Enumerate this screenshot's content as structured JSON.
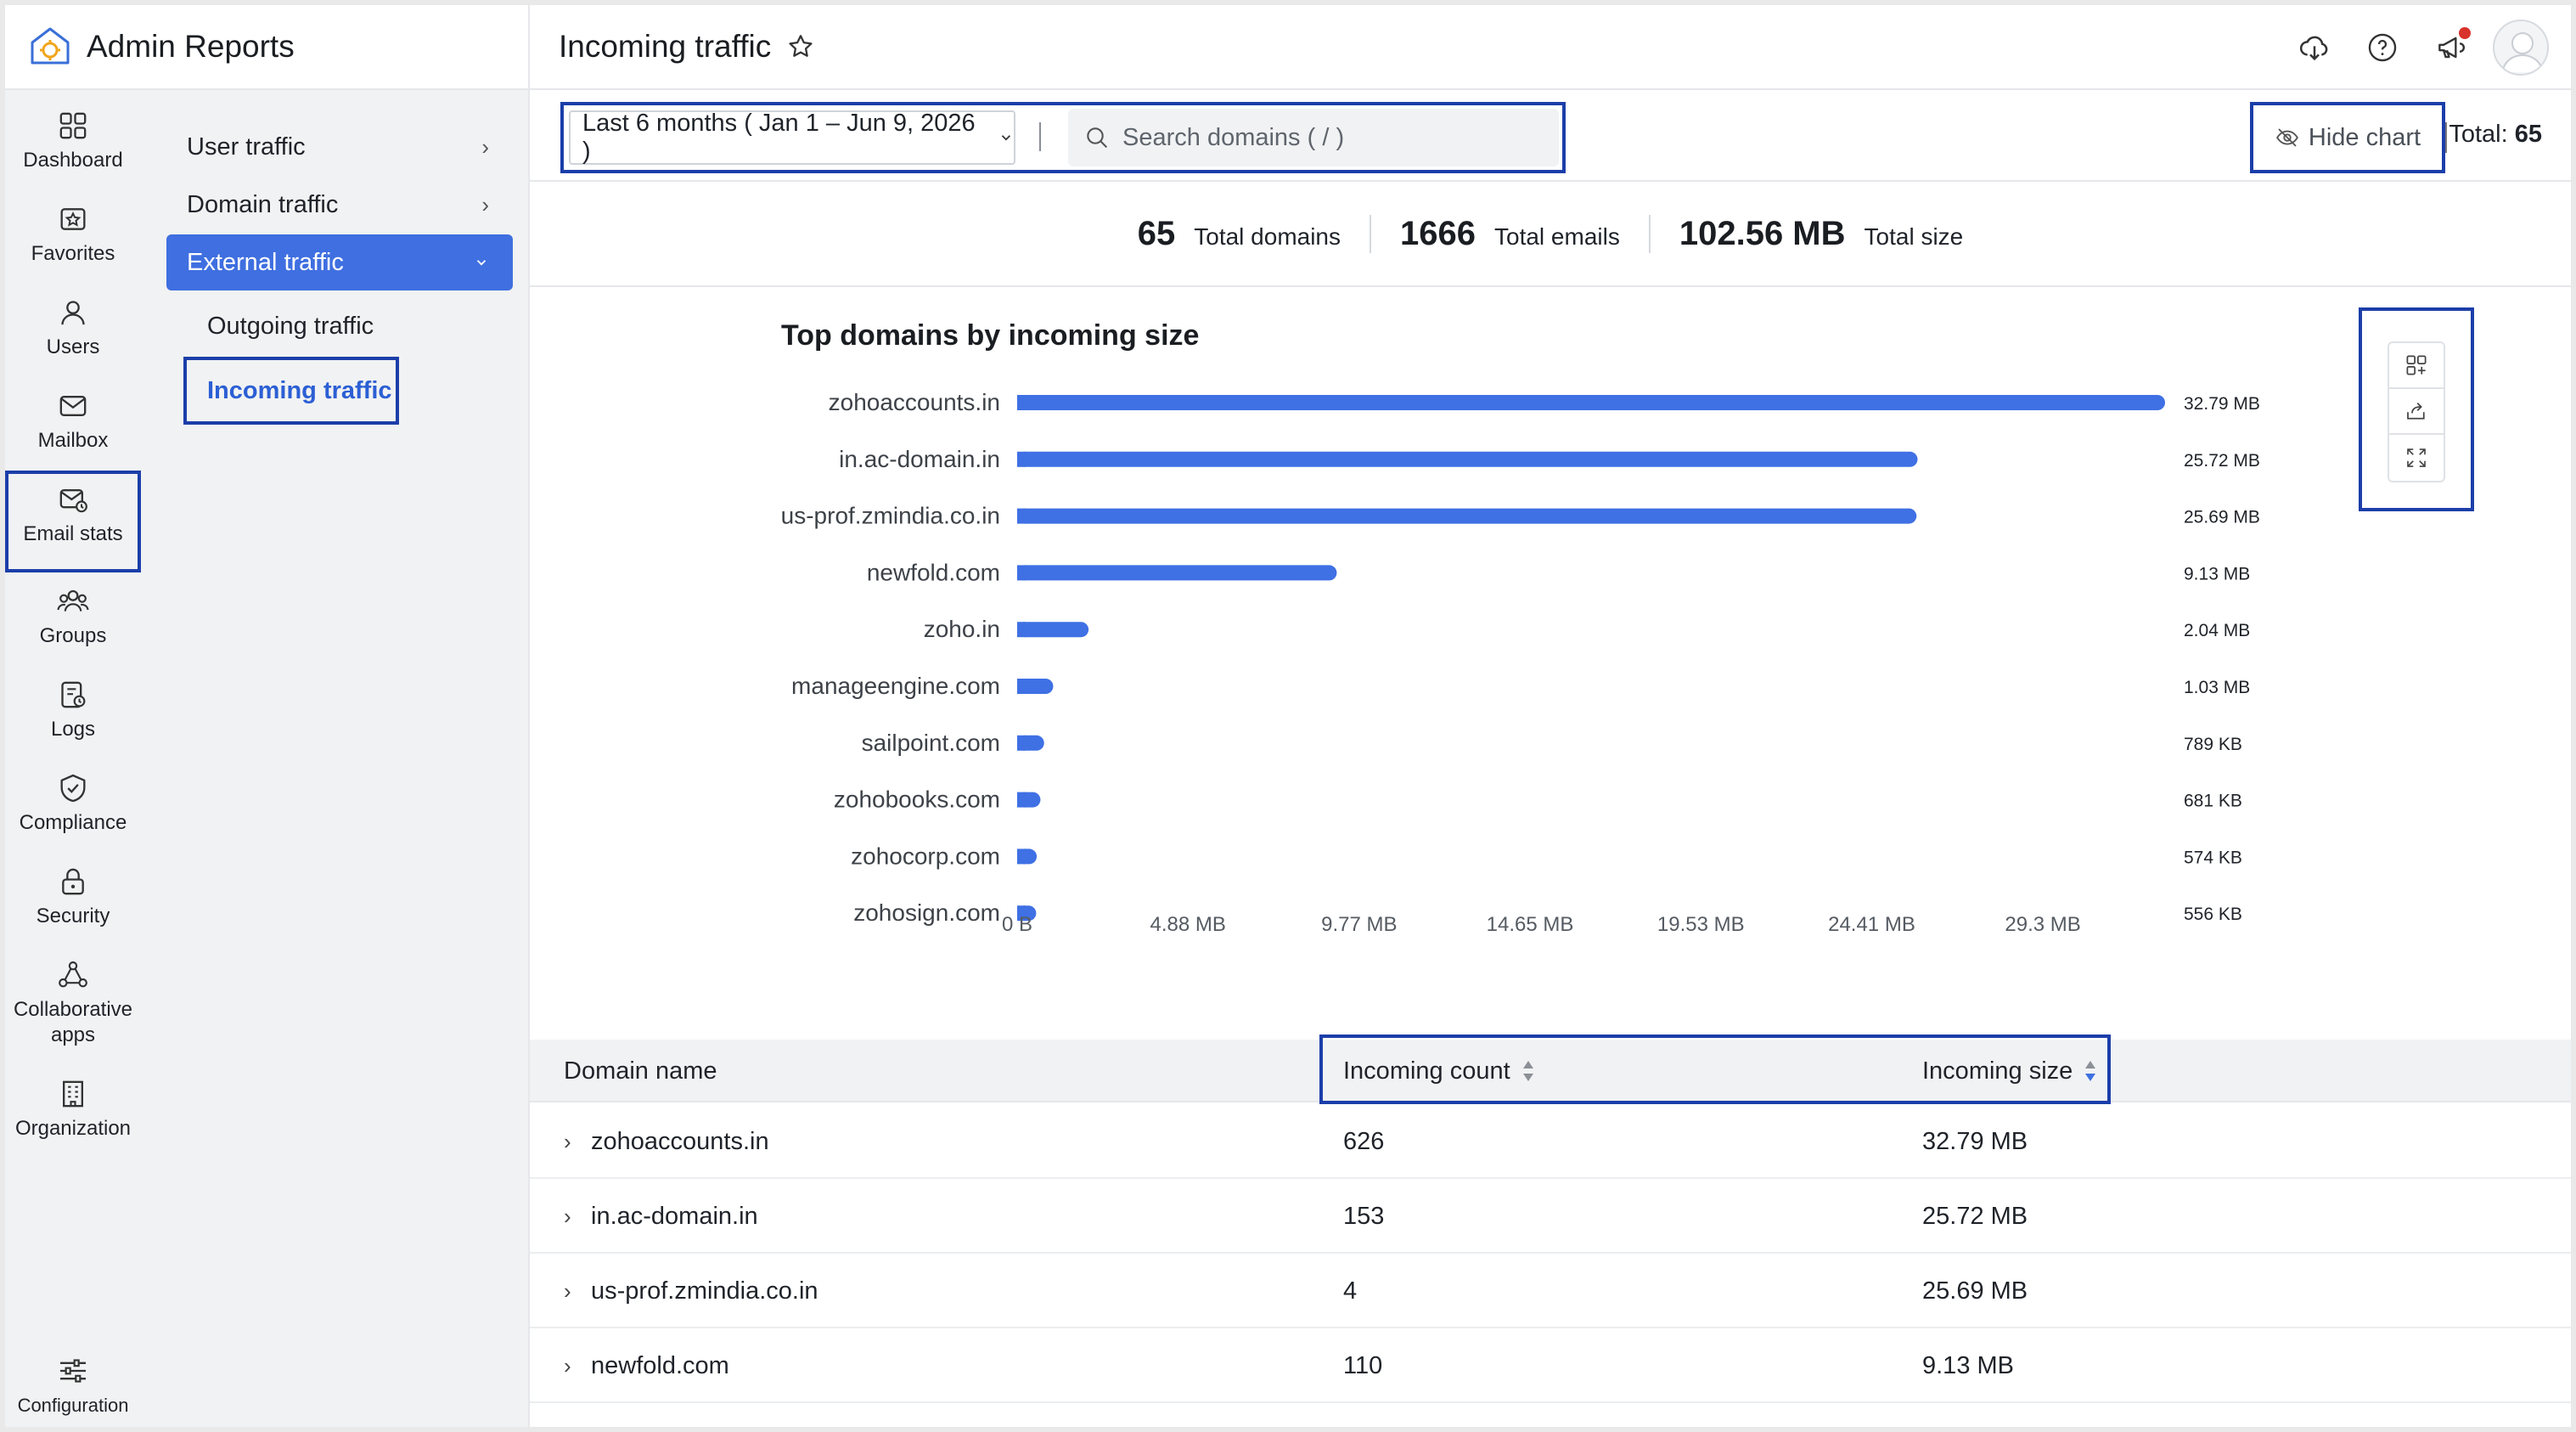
{
  "app": {
    "title": "Admin Reports"
  },
  "header": {
    "page_title": "Incoming traffic"
  },
  "rail": [
    {
      "label": "Dashboard",
      "icon": "dashboard-icon"
    },
    {
      "label": "Favorites",
      "icon": "favorites-icon"
    },
    {
      "label": "Users",
      "icon": "user-icon"
    },
    {
      "label": "Mailbox",
      "icon": "mailbox-icon"
    },
    {
      "label": "Email stats",
      "icon": "email-stats-icon",
      "active": true
    },
    {
      "label": "Groups",
      "icon": "groups-icon"
    },
    {
      "label": "Logs",
      "icon": "logs-icon"
    },
    {
      "label": "Compliance",
      "icon": "compliance-icon"
    },
    {
      "label": "Security",
      "icon": "lock-icon"
    },
    {
      "label": "Collaborative apps",
      "label_line1": "Collaborative",
      "label_line2": "apps",
      "icon": "collaborative-apps-icon"
    },
    {
      "label": "Organization",
      "icon": "organization-icon"
    }
  ],
  "rail_bottom": {
    "label": "Configuration",
    "icon": "settings-sliders-icon"
  },
  "subnav": {
    "items": [
      {
        "label": "User traffic"
      },
      {
        "label": "Domain traffic"
      },
      {
        "label": "External traffic",
        "selected": true
      }
    ],
    "children": [
      {
        "label": "Outgoing traffic"
      },
      {
        "label": "Incoming traffic",
        "active": true
      }
    ]
  },
  "toolbar": {
    "date_range": "Last 6 months ( Jan 1 – Jun 9, 2026 )",
    "search_placeholder": "Search domains ( / )",
    "hide_chart_label": "Hide chart",
    "total_label": "Total:",
    "total_value": "65"
  },
  "stats": [
    {
      "value": "65",
      "label": "Total domains"
    },
    {
      "value": "1666",
      "label": "Total emails"
    },
    {
      "value": "102.56 MB",
      "label": "Total size"
    }
  ],
  "chart_data": {
    "type": "bar",
    "orientation": "horizontal",
    "title": "Top domains by incoming size",
    "categories": [
      "zohoaccounts.in",
      "in.ac-domain.in",
      "us-prof.zmindia.co.in",
      "newfold.com",
      "zoho.in",
      "manageengine.com",
      "sailpoint.com",
      "zohobooks.com",
      "zohocorp.com",
      "zohosign.com"
    ],
    "values_mb": [
      32.79,
      25.72,
      25.69,
      9.13,
      2.04,
      1.03,
      0.77,
      0.665,
      0.56,
      0.543
    ],
    "value_labels": [
      "32.79 MB",
      "25.72 MB",
      "25.69 MB",
      "9.13 MB",
      "2.04 MB",
      "1.03 MB",
      "789 KB",
      "681 KB",
      "574 KB",
      "556 KB"
    ],
    "x_ticks": [
      "0 B",
      "4.88 MB",
      "9.77 MB",
      "14.65 MB",
      "19.53 MB",
      "24.41 MB",
      "29.3 MB"
    ],
    "x_tick_values_mb": [
      0,
      4.88,
      9.77,
      14.65,
      19.53,
      24.41,
      29.3
    ],
    "xlim_mb": [
      0,
      32.79
    ],
    "bar_color": "#3f70e4",
    "grid": false
  },
  "table": {
    "columns": [
      "Domain name",
      "Incoming count",
      "Incoming size"
    ],
    "rows": [
      {
        "domain": "zohoaccounts.in",
        "count": "626",
        "size": "32.79 MB"
      },
      {
        "domain": "in.ac-domain.in",
        "count": "153",
        "size": "25.72 MB"
      },
      {
        "domain": "us-prof.zmindia.co.in",
        "count": "4",
        "size": "25.69 MB"
      },
      {
        "domain": "newfold.com",
        "count": "110",
        "size": "9.13 MB"
      }
    ]
  },
  "colors": {
    "accent": "#3f6fe0",
    "highlight_border": "#1b3ea9",
    "notification": "#d8322c"
  }
}
